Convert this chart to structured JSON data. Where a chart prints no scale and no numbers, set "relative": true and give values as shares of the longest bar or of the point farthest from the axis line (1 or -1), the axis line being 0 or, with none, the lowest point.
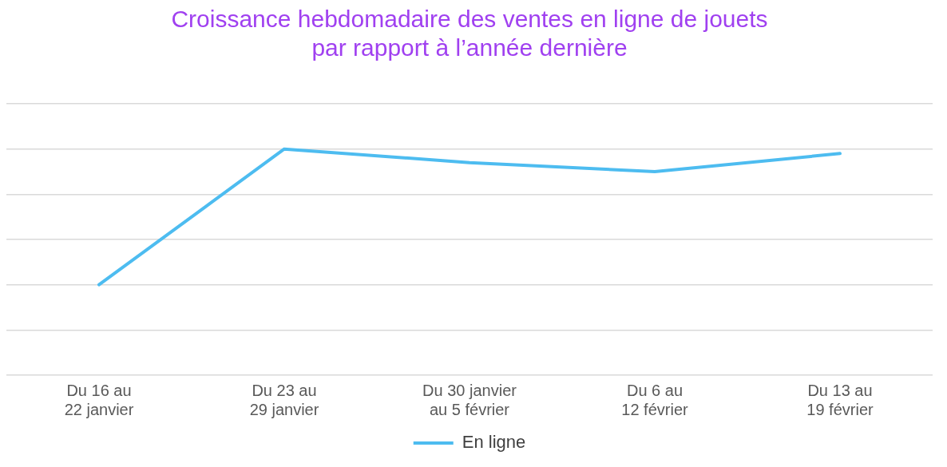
{
  "chart_data": {
    "type": "line",
    "title": [
      "Croissance hebdomadaire des ventes en ligne de jouets",
      "par rapport à l’année dernière"
    ],
    "categories": [
      "Du 16 au 22 janvier",
      "Du 23 au 29 janvier",
      "Du 30 janvier au 5 février",
      "Du 6 au 12 février",
      "Du 13 au 19 février"
    ],
    "series": [
      {
        "name": "En ligne",
        "color": "#4dbcf0",
        "values": [
          0.4,
          1,
          0.94,
          0.9,
          0.98
        ]
      }
    ],
    "relative": true,
    "grid": "y",
    "legend": "bottom",
    "marker": "none",
    "line_style": "solid"
  }
}
